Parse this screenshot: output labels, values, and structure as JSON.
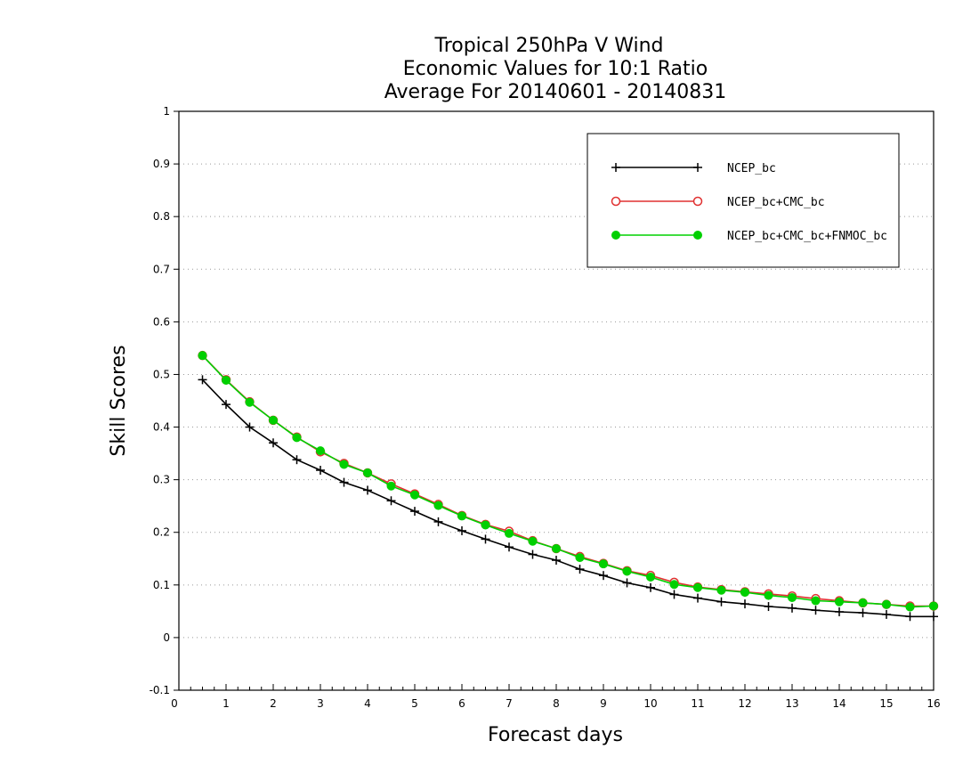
{
  "chart_data": {
    "type": "line",
    "title": "Tropical 250hPa V Wind",
    "subtitle": [
      "Economic Values for 10:1 Ratio",
      "Average For 20140601 - 20140831"
    ],
    "xlabel": "Forecast days",
    "ylabel": "Skill Scores",
    "xlim": [
      0,
      16
    ],
    "ylim": [
      -0.1,
      1
    ],
    "x_ticks": [
      0,
      1,
      2,
      3,
      4,
      5,
      6,
      7,
      8,
      9,
      10,
      11,
      12,
      13,
      14,
      15,
      16
    ],
    "x_tick_labels": [
      "0",
      "1",
      "2",
      "3",
      "4",
      "5",
      "6",
      "7",
      "8",
      "9",
      "10",
      "11",
      "12",
      "13",
      "14",
      "15",
      "16"
    ],
    "y_ticks": [
      -0.1,
      0,
      0.1,
      0.2,
      0.3,
      0.4,
      0.5,
      0.6,
      0.7,
      0.8,
      0.9,
      1
    ],
    "y_tick_labels": [
      "-0.1",
      "0",
      "0.1",
      "0.2",
      "0.3",
      "0.4",
      "0.5",
      "0.6",
      "0.7",
      "0.8",
      "0.9",
      "1"
    ],
    "grid": "horizontal dotted",
    "legend_position": "top-right",
    "x": [
      0.5,
      1,
      1.5,
      2,
      2.5,
      3,
      3.5,
      4,
      4.5,
      5,
      5.5,
      6,
      6.5,
      7,
      7.5,
      8,
      8.5,
      9,
      9.5,
      10,
      10.5,
      11,
      11.5,
      12,
      12.5,
      13,
      13.5,
      14,
      14.5,
      15,
      15.5,
      16
    ],
    "series": [
      {
        "name": "NCEP_bc",
        "color": "#000000",
        "marker": "plus",
        "values": [
          0.49,
          0.443,
          0.4,
          0.37,
          0.338,
          0.318,
          0.295,
          0.28,
          0.26,
          0.24,
          0.22,
          0.203,
          0.187,
          0.172,
          0.158,
          0.147,
          0.13,
          0.118,
          0.104,
          0.095,
          0.082,
          0.075,
          0.068,
          0.064,
          0.059,
          0.056,
          0.052,
          0.049,
          0.047,
          0.044,
          0.04,
          0.04
        ]
      },
      {
        "name": "NCEP_bc+CMC_bc",
        "color": "#e03030",
        "marker": "open-circle",
        "values": [
          0.536,
          0.49,
          0.448,
          0.413,
          0.381,
          0.353,
          0.331,
          0.313,
          0.292,
          0.273,
          0.253,
          0.232,
          0.215,
          0.202,
          0.184,
          0.169,
          0.154,
          0.141,
          0.127,
          0.118,
          0.105,
          0.096,
          0.091,
          0.087,
          0.083,
          0.079,
          0.074,
          0.07,
          0.066,
          0.063,
          0.06,
          0.06
        ]
      },
      {
        "name": "NCEP_bc+CMC_bc+FNMOC_bc",
        "color": "#00d000",
        "marker": "filled-circle",
        "values": [
          0.536,
          0.489,
          0.447,
          0.413,
          0.38,
          0.355,
          0.329,
          0.313,
          0.288,
          0.271,
          0.251,
          0.231,
          0.214,
          0.198,
          0.183,
          0.169,
          0.152,
          0.14,
          0.126,
          0.115,
          0.101,
          0.095,
          0.09,
          0.086,
          0.08,
          0.076,
          0.07,
          0.068,
          0.066,
          0.063,
          0.058,
          0.06
        ]
      }
    ]
  }
}
